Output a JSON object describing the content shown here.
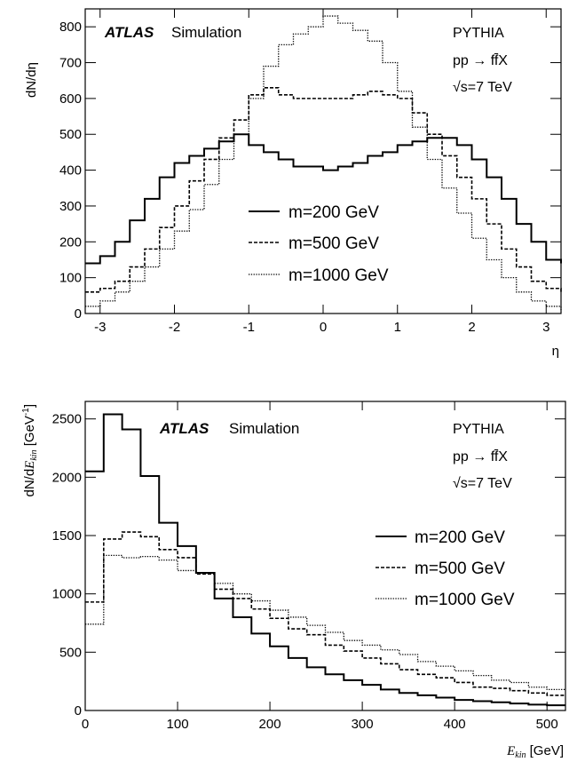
{
  "chart_data": [
    {
      "type": "line",
      "step": true,
      "ylabel": "dN/dη",
      "xlabel": "η",
      "xlim": [
        -3.2,
        3.2
      ],
      "ylim": [
        0,
        850
      ],
      "xticks": [
        -3,
        -2,
        -1,
        0,
        1,
        2,
        3
      ],
      "xtick_labels": [
        "-3",
        "-2",
        "-1",
        "0",
        "1",
        "2",
        "3"
      ],
      "yticks": [
        0,
        100,
        200,
        300,
        400,
        500,
        600,
        700,
        800
      ],
      "ytick_labels": [
        "0",
        "100",
        "200",
        "300",
        "400",
        "500",
        "600",
        "700",
        "800"
      ],
      "annotations": {
        "atlas": "ATLAS",
        "simulation": "Simulation",
        "generator": "PYTHIA",
        "process": "pp → ff̄X",
        "energy": "√s=7 TeV"
      },
      "legend_position": "center",
      "series": [
        {
          "name": "m=200 GeV",
          "style": "solid",
          "x": [
            -3.2,
            -3.0,
            -2.8,
            -2.6,
            -2.4,
            -2.2,
            -2.0,
            -1.8,
            -1.6,
            -1.4,
            -1.2,
            -1.0,
            -0.8,
            -0.6,
            -0.4,
            -0.2,
            0.0,
            0.2,
            0.4,
            0.6,
            0.8,
            1.0,
            1.2,
            1.4,
            1.6,
            1.8,
            2.0,
            2.2,
            2.4,
            2.6,
            2.8,
            3.0,
            3.2
          ],
          "y": [
            140,
            160,
            200,
            260,
            320,
            380,
            420,
            440,
            460,
            480,
            500,
            470,
            450,
            430,
            410,
            410,
            400,
            410,
            420,
            440,
            450,
            470,
            480,
            490,
            490,
            470,
            430,
            380,
            320,
            250,
            200,
            150,
            140
          ]
        },
        {
          "name": "m=500 GeV",
          "style": "dashed",
          "x": [
            -3.2,
            -3.0,
            -2.8,
            -2.6,
            -2.4,
            -2.2,
            -2.0,
            -1.8,
            -1.6,
            -1.4,
            -1.2,
            -1.0,
            -0.8,
            -0.6,
            -0.4,
            -0.2,
            0.0,
            0.2,
            0.4,
            0.6,
            0.8,
            1.0,
            1.2,
            1.4,
            1.6,
            1.8,
            2.0,
            2.2,
            2.4,
            2.6,
            2.8,
            3.0,
            3.2
          ],
          "y": [
            60,
            70,
            90,
            130,
            180,
            240,
            300,
            370,
            430,
            490,
            540,
            610,
            630,
            610,
            600,
            600,
            600,
            600,
            610,
            620,
            610,
            600,
            560,
            500,
            440,
            380,
            320,
            250,
            180,
            130,
            90,
            70,
            60
          ]
        },
        {
          "name": "m=1000 GeV",
          "style": "dotted",
          "x": [
            -3.2,
            -3.0,
            -2.8,
            -2.6,
            -2.4,
            -2.2,
            -2.0,
            -1.8,
            -1.6,
            -1.4,
            -1.2,
            -1.0,
            -0.8,
            -0.6,
            -0.4,
            -0.2,
            0.0,
            0.2,
            0.4,
            0.6,
            0.8,
            1.0,
            1.2,
            1.4,
            1.6,
            1.8,
            2.0,
            2.2,
            2.4,
            2.6,
            2.8,
            3.0,
            3.2
          ],
          "y": [
            20,
            35,
            60,
            90,
            130,
            180,
            230,
            290,
            360,
            430,
            500,
            600,
            690,
            750,
            780,
            800,
            830,
            810,
            790,
            760,
            700,
            620,
            520,
            430,
            350,
            280,
            210,
            150,
            100,
            60,
            35,
            20,
            10
          ]
        }
      ]
    },
    {
      "type": "line",
      "step": true,
      "ylabel": "dN/dE_kin [GeV⁻¹]",
      "xlabel": "E_kin [GeV]",
      "xlim": [
        0,
        520
      ],
      "ylim": [
        0,
        2650
      ],
      "xticks": [
        0,
        100,
        200,
        300,
        400,
        500
      ],
      "xtick_labels": [
        "0",
        "100",
        "200",
        "300",
        "400",
        "500"
      ],
      "yticks": [
        0,
        500,
        1000,
        1500,
        2000,
        2500
      ],
      "ytick_labels": [
        "0",
        "500",
        "1000",
        "1500",
        "2000",
        "2500"
      ],
      "annotations": {
        "atlas": "ATLAS",
        "simulation": "Simulation",
        "generator": "PYTHIA",
        "process": "pp → ff̄X",
        "energy": "√s=7 TeV"
      },
      "legend_position": "right",
      "series": [
        {
          "name": "m=200 GeV",
          "style": "solid",
          "bin_edges": [
            0,
            20,
            40,
            60,
            80,
            100,
            120,
            140,
            160,
            180,
            200,
            220,
            240,
            260,
            280,
            300,
            320,
            340,
            360,
            380,
            400,
            420,
            440,
            460,
            480,
            500,
            520
          ],
          "values": [
            2050,
            2540,
            2410,
            2010,
            1610,
            1410,
            1180,
            960,
            800,
            660,
            550,
            450,
            370,
            310,
            260,
            220,
            180,
            150,
            130,
            110,
            90,
            80,
            70,
            60,
            50,
            45
          ]
        },
        {
          "name": "m=500 GeV",
          "style": "dashed",
          "bin_edges": [
            0,
            20,
            40,
            60,
            80,
            100,
            120,
            140,
            160,
            180,
            200,
            220,
            240,
            260,
            280,
            300,
            320,
            340,
            360,
            380,
            400,
            420,
            440,
            460,
            480,
            500,
            520
          ],
          "values": [
            930,
            1470,
            1530,
            1490,
            1380,
            1310,
            1170,
            1040,
            960,
            870,
            790,
            700,
            650,
            560,
            510,
            450,
            400,
            350,
            310,
            280,
            240,
            200,
            190,
            170,
            150,
            130
          ]
        },
        {
          "name": "m=1000 GeV",
          "style": "dotted",
          "bin_edges": [
            0,
            20,
            40,
            60,
            80,
            100,
            120,
            140,
            160,
            180,
            200,
            220,
            240,
            260,
            280,
            300,
            320,
            340,
            360,
            380,
            400,
            420,
            440,
            460,
            480,
            500,
            520
          ],
          "values": [
            740,
            1330,
            1310,
            1320,
            1290,
            1200,
            1180,
            1090,
            1000,
            940,
            860,
            800,
            730,
            670,
            600,
            560,
            520,
            480,
            420,
            380,
            340,
            300,
            260,
            240,
            200,
            180
          ]
        }
      ]
    }
  ]
}
